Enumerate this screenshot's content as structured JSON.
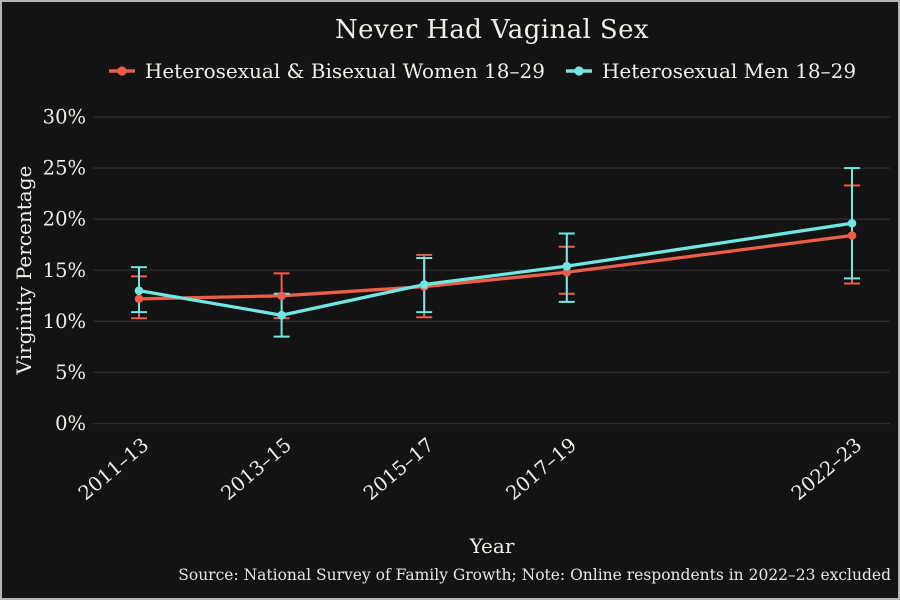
{
  "chart_data": {
    "type": "line",
    "title": "Never Had Vaginal Sex",
    "xlabel": "Year",
    "ylabel": "Virginity Percentage",
    "source_note": "Source: National Survey of Family Growth; Note: Online respondents in 2022–23 excluded",
    "categories": [
      "2011–13",
      "2013–15",
      "2015–17",
      "2017–19",
      "2022–23"
    ],
    "x_positions": [
      0,
      1,
      2,
      3,
      5
    ],
    "ylim": [
      0,
      30
    ],
    "yticks": [
      0,
      5,
      10,
      15,
      20,
      25,
      30
    ],
    "ytick_labels": [
      "0%",
      "5%",
      "10%",
      "15%",
      "20%",
      "25%",
      "30%"
    ],
    "grid": "horizontal",
    "legend_position": "top-center",
    "error_bars": true,
    "series": [
      {
        "name": "Heterosexual & Bisexual Women 18–29",
        "color": "#ee5d49",
        "values": [
          12.2,
          12.5,
          13.4,
          14.8,
          18.4
        ],
        "ci_low": [
          10.3,
          10.3,
          10.4,
          12.7,
          13.7
        ],
        "ci_high": [
          14.4,
          14.7,
          16.5,
          17.3,
          23.3
        ]
      },
      {
        "name": "Heterosexual Men 18–29",
        "color": "#70e7e1",
        "values": [
          13.0,
          10.6,
          13.6,
          15.4,
          19.6
        ],
        "ci_low": [
          10.9,
          8.5,
          10.9,
          11.9,
          14.2
        ],
        "ci_high": [
          15.3,
          12.7,
          16.2,
          18.6,
          25.0
        ]
      }
    ],
    "colors": {
      "background": "#131313",
      "border": "#b5b5b5",
      "text": "#f1efe9",
      "gridline": "#2e2e2e"
    }
  }
}
